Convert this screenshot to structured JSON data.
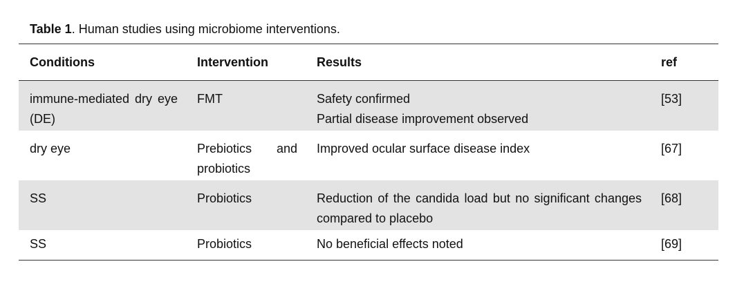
{
  "caption": {
    "label": "Table 1",
    "text": ". Human studies using microbiome interventions."
  },
  "table": {
    "headers": [
      "Conditions",
      "Intervention",
      "Results",
      "ref"
    ],
    "rows": [
      {
        "condition": "immune-mediated dry eye (DE)",
        "intervention": "FMT",
        "results": [
          "Safety confirmed",
          "Partial disease improvement observed"
        ],
        "ref": "[53]"
      },
      {
        "condition": "dry eye",
        "intervention": "Prebiotics and probiotics",
        "results": [
          "Improved ocular surface disease index"
        ],
        "ref": "[67]"
      },
      {
        "condition": "SS",
        "intervention": "Probiotics",
        "results": [
          "Reduction of the candida load but no significant changes compared to placebo"
        ],
        "ref": "[68]"
      },
      {
        "condition": "SS",
        "intervention": "Probiotics",
        "results": [
          "No beneficial effects noted"
        ],
        "ref": "[69]"
      }
    ]
  }
}
